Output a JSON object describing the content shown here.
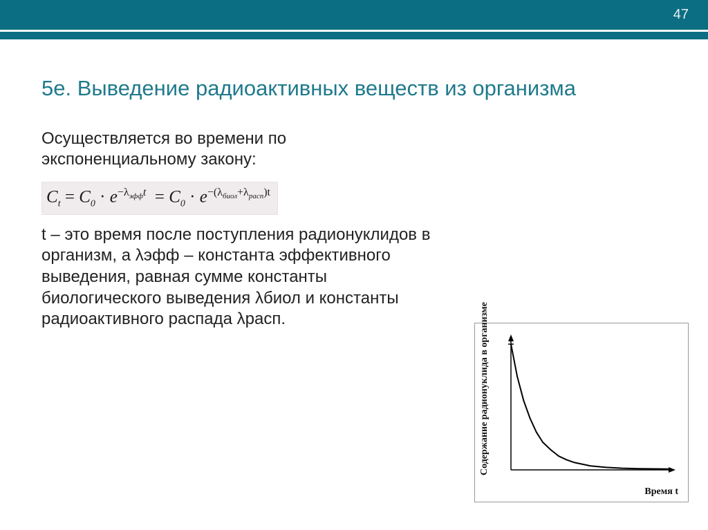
{
  "header": {
    "page_number": "47",
    "bar_color": "#0b6e82",
    "page_number_color": "#e6eff1"
  },
  "title": {
    "text": "5е. Выведение радиоактивных веществ из организма",
    "color": "#1f7a8c",
    "fontsize": 31
  },
  "intro": {
    "text": "Осуществляется во времени по экспоненциальному закону:",
    "fontsize": 24,
    "color": "#222222"
  },
  "formula": {
    "C_t": "C",
    "t_sub": "t",
    "eq": "=",
    "C_0": "C",
    "zero_sub": "0",
    "dot": "·",
    "e": "e",
    "exp1_prefix": "−λ",
    "exp1_sub": "эфф",
    "exp1_suffix": "t",
    "exp2_prefix": "−(λ",
    "exp2_sub1": "биол",
    "exp2_mid": "+λ",
    "exp2_sub2": "расп",
    "exp2_suffix": ")t",
    "background": "#f0ecee",
    "fontsize": 25
  },
  "explain": {
    "text": "t – это время после поступления радионуклидов в организм, а λэфф – константа эффективного выведения, равная сумме константы биологического выведения λбиол и константы радиоактивного распада λрасп.",
    "fontsize": 24,
    "color": "#222222"
  },
  "chart": {
    "type": "line",
    "y_label": "Содержание радионуклида в организме",
    "x_label": "Время t",
    "x_label_italic_part": "t",
    "line_color": "#000000",
    "line_width": 2,
    "axis_color": "#000000",
    "background_color": "#ffffff",
    "border_color": "#999999",
    "xlim": [
      0,
      10
    ],
    "ylim": [
      0,
      1
    ],
    "points": [
      [
        0.0,
        1.0
      ],
      [
        0.4,
        0.74
      ],
      [
        0.8,
        0.55
      ],
      [
        1.2,
        0.41
      ],
      [
        1.6,
        0.3
      ],
      [
        2.0,
        0.22
      ],
      [
        2.5,
        0.16
      ],
      [
        3.0,
        0.11
      ],
      [
        3.5,
        0.08
      ],
      [
        4.0,
        0.058
      ],
      [
        5.0,
        0.032
      ],
      [
        6.0,
        0.02
      ],
      [
        7.0,
        0.013
      ],
      [
        8.0,
        0.01
      ],
      [
        9.0,
        0.008
      ],
      [
        10.0,
        0.007
      ]
    ],
    "label_fontsize": 14,
    "label_fontfamily": "Times New Roman"
  }
}
